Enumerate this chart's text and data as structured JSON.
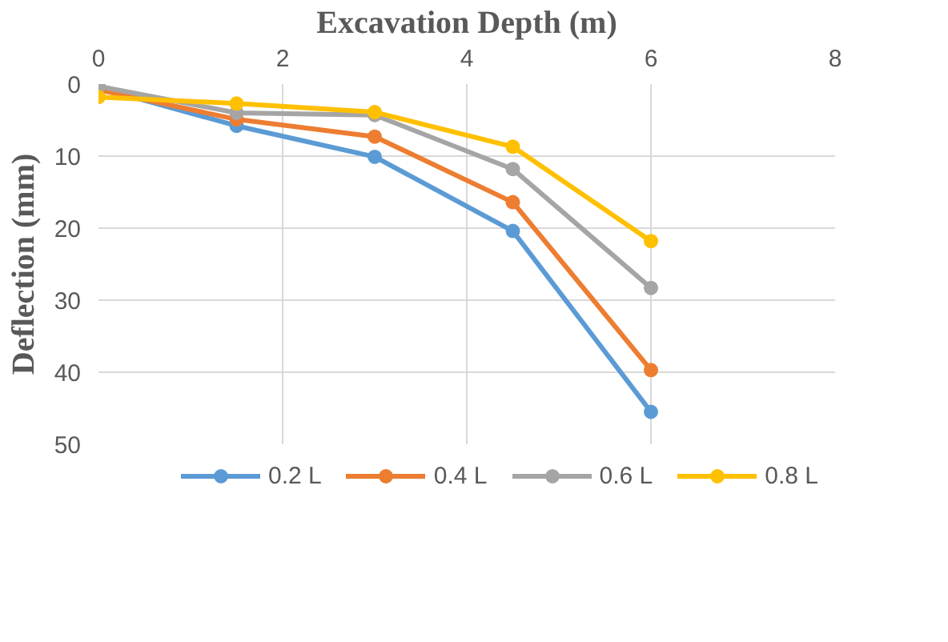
{
  "chart_data": {
    "type": "line",
    "xlabel": "Excavation Depth (m)",
    "ylabel": "Deflection (mm)",
    "x": [
      0,
      1.5,
      3,
      4.5,
      6
    ],
    "xlim": [
      0,
      8
    ],
    "xticks": [
      0,
      2,
      4,
      6,
      8
    ],
    "ylim": [
      50,
      0
    ],
    "yticks": [
      0,
      10,
      20,
      30,
      40,
      50
    ],
    "grid": true,
    "legend": "bottom",
    "marker": "circle",
    "line_style": "solid",
    "series": [
      {
        "name": "0.2 L",
        "color": "#5b9bd5",
        "values": [
          0.5,
          5.8,
          10.1,
          20.4,
          45.5
        ]
      },
      {
        "name": "0.4 L",
        "color": "#ed7d31",
        "values": [
          0.8,
          4.9,
          7.3,
          16.4,
          39.7
        ]
      },
      {
        "name": "0.6 L",
        "color": "#a5a5a5",
        "values": [
          0.3,
          4,
          4.3,
          11.8,
          28.3
        ]
      },
      {
        "name": "0.8 L",
        "color": "#ffc000",
        "values": [
          1.8,
          2.7,
          3.9,
          8.7,
          21.8
        ]
      }
    ]
  }
}
